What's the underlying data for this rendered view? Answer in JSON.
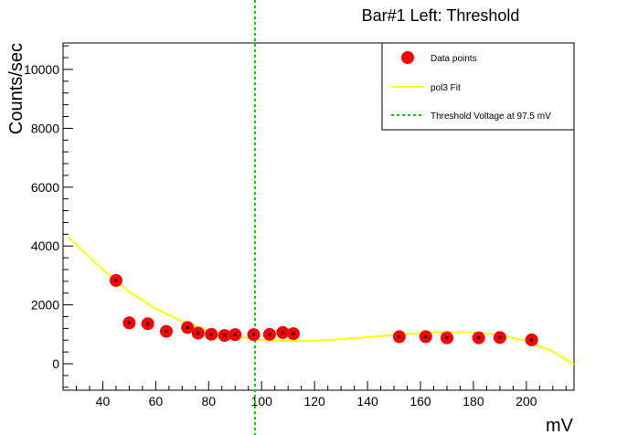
{
  "chart_data": {
    "type": "scatter",
    "title": "Bar#1 Left: Threshold",
    "xlabel": "mV",
    "ylabel": "Counts/sec",
    "xlim": [
      25,
      218
    ],
    "ylim": [
      -900,
      10900
    ],
    "x_ticks": [
      40,
      60,
      80,
      100,
      120,
      140,
      160,
      180,
      200
    ],
    "y_ticks": [
      0,
      2000,
      4000,
      6000,
      8000,
      10000
    ],
    "legend_position": "top-right",
    "colors": {
      "points": "#ff0000",
      "fit": "#ffff00",
      "threshold": "#00dd00"
    },
    "series": [
      {
        "name": "Data points",
        "type": "scatter",
        "x": [
          45,
          50,
          57,
          64,
          72,
          76,
          81,
          86,
          90,
          97,
          103,
          108,
          112,
          152,
          162,
          170,
          182,
          190,
          202
        ],
        "y": [
          2830,
          1390,
          1360,
          1100,
          1230,
          1040,
          1000,
          960,
          990,
          990,
          1000,
          1060,
          1020,
          920,
          920,
          880,
          880,
          890,
          810
        ]
      },
      {
        "name": "pol3 Fit",
        "type": "line",
        "x": [
          27,
          40,
          50,
          60,
          70,
          80,
          90,
          100,
          110,
          120,
          130,
          140,
          150,
          160,
          170,
          180,
          190,
          200,
          210,
          218
        ],
        "y": [
          4300,
          3200,
          2450,
          1870,
          1440,
          1130,
          930,
          810,
          770,
          780,
          830,
          900,
          980,
          1040,
          1080,
          1070,
          980,
          770,
          420,
          -30
        ]
      },
      {
        "name": "Threshold Voltage at 97.5 mV",
        "type": "vline",
        "x": 97.5
      }
    ]
  }
}
